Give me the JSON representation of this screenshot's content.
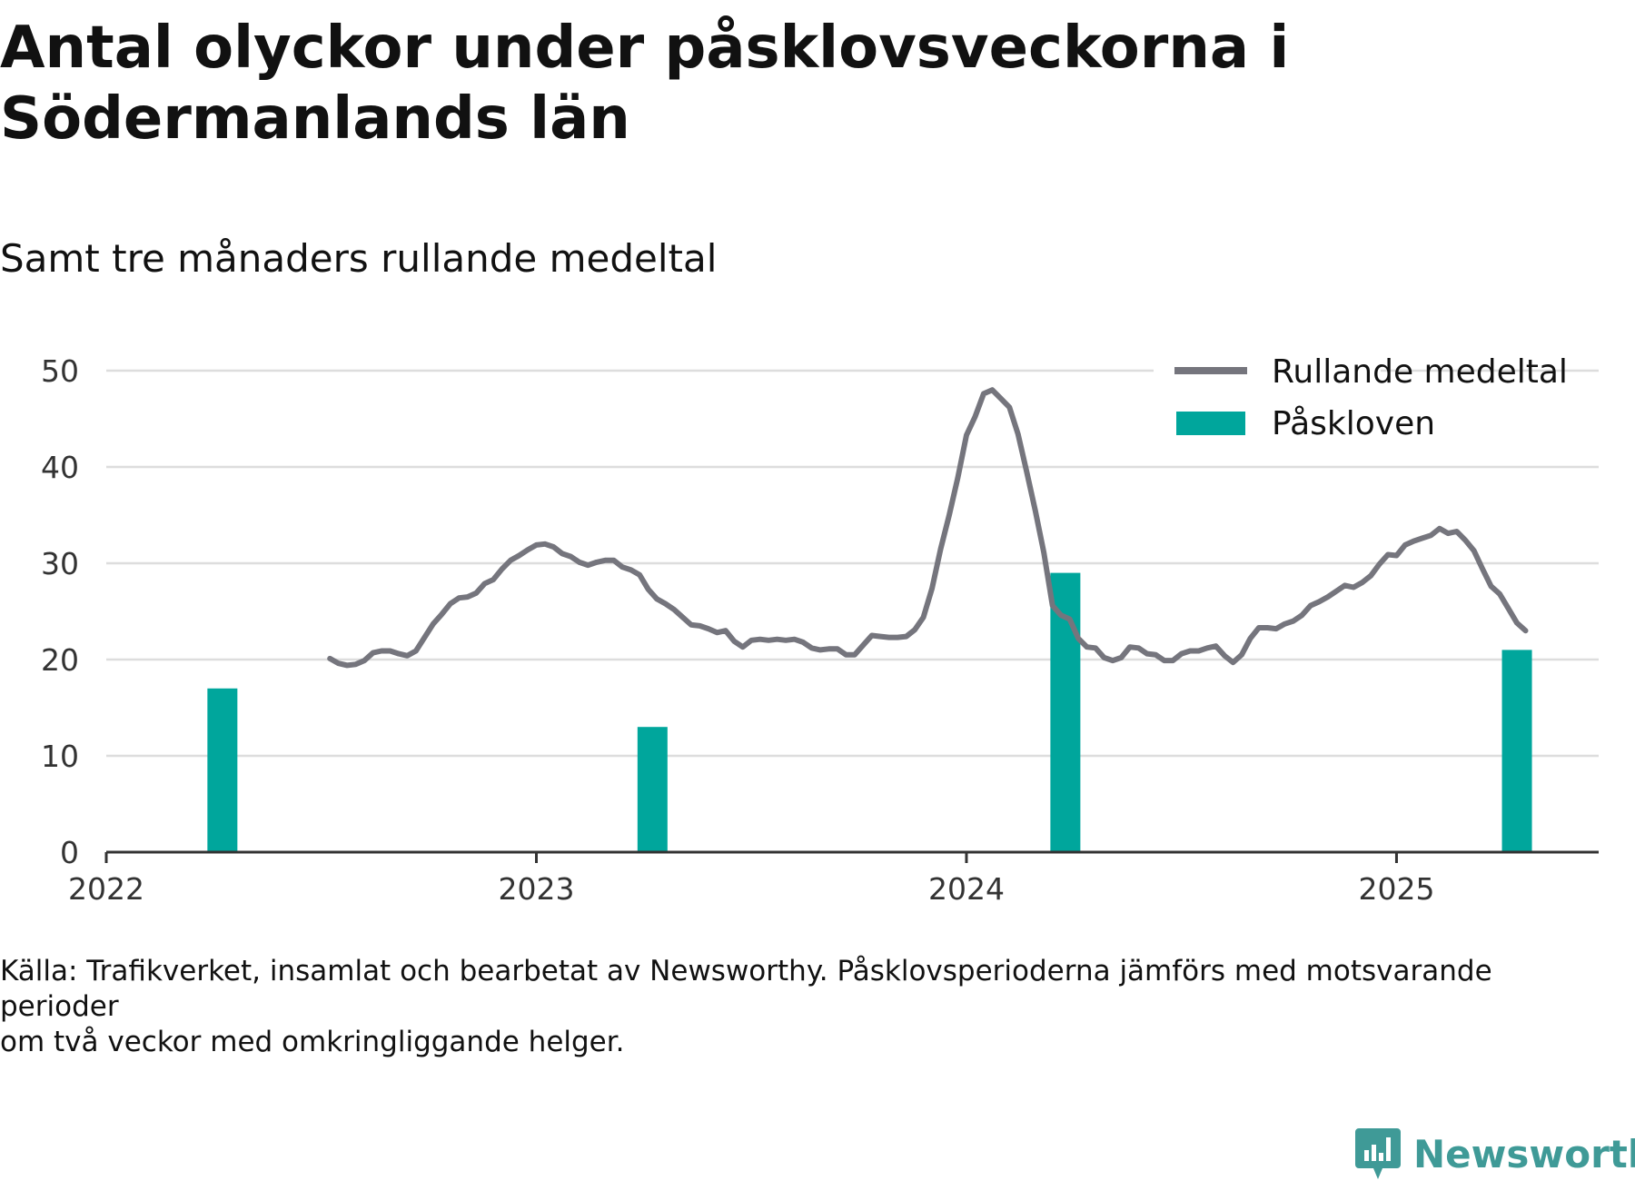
{
  "header": {
    "title": "Antal olyckor under påsklovsveckorna i Södermanlands län",
    "subtitle": "Samt tre månaders rullande medeltal"
  },
  "footer": {
    "source_line1": "Källa: Trafikverket, insamlat och bearbetat av Newsworthy. Påsklovsperioderna jämförs med motsvarande perioder",
    "source_line2": "om två veckor med omkringliggande helger."
  },
  "brand": {
    "name": "Newsworthy",
    "color": "#3f9a97",
    "icon": "newsworthy-logo-icon"
  },
  "colors": {
    "line": "#75757d",
    "bar": "#00a69c",
    "grid": "#dddddd",
    "axis": "#333333"
  },
  "chart_data": {
    "type": "bar+line",
    "ylim": [
      0,
      50
    ],
    "yticks": [
      0,
      10,
      20,
      30,
      40,
      50
    ],
    "xticks": [
      "2022",
      "2023",
      "2024",
      "2025"
    ],
    "xlim": [
      2022.0,
      2025.47
    ],
    "grid": true,
    "legend_position": "top-right",
    "series": [
      {
        "name": "Påskloven",
        "type": "bar",
        "x": [
          2022.27,
          2023.27,
          2024.23,
          2025.28
        ],
        "values": [
          17,
          13,
          29,
          21
        ]
      },
      {
        "name": "Rullande medeltal",
        "type": "line",
        "points": [
          [
            2022.52,
            20.1
          ],
          [
            2022.54,
            19.6
          ],
          [
            2022.56,
            19.4
          ],
          [
            2022.58,
            19.5
          ],
          [
            2022.6,
            19.9
          ],
          [
            2022.62,
            20.7
          ],
          [
            2022.64,
            20.9
          ],
          [
            2022.66,
            20.9
          ],
          [
            2022.68,
            20.6
          ],
          [
            2022.7,
            20.4
          ],
          [
            2022.72,
            20.9
          ],
          [
            2022.74,
            22.3
          ],
          [
            2022.76,
            23.7
          ],
          [
            2022.78,
            24.7
          ],
          [
            2022.8,
            25.8
          ],
          [
            2022.82,
            26.4
          ],
          [
            2022.84,
            26.5
          ],
          [
            2022.86,
            26.9
          ],
          [
            2022.88,
            27.9
          ],
          [
            2022.9,
            28.3
          ],
          [
            2022.92,
            29.4
          ],
          [
            2022.94,
            30.3
          ],
          [
            2022.96,
            30.8
          ],
          [
            2022.98,
            31.4
          ],
          [
            2023.0,
            31.9
          ],
          [
            2023.02,
            32.0
          ],
          [
            2023.04,
            31.7
          ],
          [
            2023.06,
            31.0
          ],
          [
            2023.08,
            30.7
          ],
          [
            2023.1,
            30.1
          ],
          [
            2023.12,
            29.8
          ],
          [
            2023.14,
            30.1
          ],
          [
            2023.16,
            30.3
          ],
          [
            2023.18,
            30.3
          ],
          [
            2023.2,
            29.6
          ],
          [
            2023.22,
            29.3
          ],
          [
            2023.24,
            28.8
          ],
          [
            2023.26,
            27.3
          ],
          [
            2023.28,
            26.3
          ],
          [
            2023.3,
            25.8
          ],
          [
            2023.32,
            25.2
          ],
          [
            2023.34,
            24.4
          ],
          [
            2023.36,
            23.6
          ],
          [
            2023.38,
            23.5
          ],
          [
            2023.4,
            23.2
          ],
          [
            2023.42,
            22.8
          ],
          [
            2023.44,
            23.0
          ],
          [
            2023.46,
            21.9
          ],
          [
            2023.48,
            21.3
          ],
          [
            2023.5,
            22.0
          ],
          [
            2023.52,
            22.1
          ],
          [
            2023.54,
            22.0
          ],
          [
            2023.56,
            22.1
          ],
          [
            2023.58,
            22.0
          ],
          [
            2023.6,
            22.1
          ],
          [
            2023.62,
            21.8
          ],
          [
            2023.64,
            21.2
          ],
          [
            2023.66,
            21.0
          ],
          [
            2023.68,
            21.1
          ],
          [
            2023.7,
            21.1
          ],
          [
            2023.72,
            20.5
          ],
          [
            2023.74,
            20.5
          ],
          [
            2023.76,
            21.5
          ],
          [
            2023.78,
            22.5
          ],
          [
            2023.8,
            22.4
          ],
          [
            2023.82,
            22.3
          ],
          [
            2023.84,
            22.3
          ],
          [
            2023.86,
            22.4
          ],
          [
            2023.88,
            23.1
          ],
          [
            2023.9,
            24.4
          ],
          [
            2023.92,
            27.4
          ],
          [
            2023.94,
            31.5
          ],
          [
            2023.96,
            35.0
          ],
          [
            2023.98,
            38.9
          ],
          [
            2024.0,
            43.3
          ],
          [
            2024.02,
            45.2
          ],
          [
            2024.04,
            47.6
          ],
          [
            2024.06,
            48.0
          ],
          [
            2024.08,
            47.1
          ],
          [
            2024.1,
            46.2
          ],
          [
            2024.12,
            43.4
          ],
          [
            2024.14,
            39.5
          ],
          [
            2024.16,
            35.5
          ],
          [
            2024.18,
            31.1
          ],
          [
            2024.2,
            25.6
          ],
          [
            2024.22,
            24.6
          ],
          [
            2024.24,
            24.2
          ],
          [
            2024.26,
            22.2
          ],
          [
            2024.28,
            21.3
          ],
          [
            2024.3,
            21.2
          ],
          [
            2024.32,
            20.2
          ],
          [
            2024.34,
            19.9
          ],
          [
            2024.36,
            20.2
          ],
          [
            2024.38,
            21.3
          ],
          [
            2024.4,
            21.2
          ],
          [
            2024.42,
            20.6
          ],
          [
            2024.44,
            20.5
          ],
          [
            2024.46,
            19.9
          ],
          [
            2024.48,
            19.9
          ],
          [
            2024.5,
            20.6
          ],
          [
            2024.52,
            20.9
          ],
          [
            2024.54,
            20.9
          ],
          [
            2024.56,
            21.2
          ],
          [
            2024.58,
            21.4
          ],
          [
            2024.6,
            20.4
          ],
          [
            2024.62,
            19.7
          ],
          [
            2024.64,
            20.5
          ],
          [
            2024.66,
            22.2
          ],
          [
            2024.68,
            23.3
          ],
          [
            2024.7,
            23.3
          ],
          [
            2024.72,
            23.2
          ],
          [
            2024.74,
            23.7
          ],
          [
            2024.76,
            24.0
          ],
          [
            2024.78,
            24.6
          ],
          [
            2024.8,
            25.6
          ],
          [
            2024.82,
            26.0
          ],
          [
            2024.84,
            26.5
          ],
          [
            2024.86,
            27.1
          ],
          [
            2024.88,
            27.7
          ],
          [
            2024.9,
            27.5
          ],
          [
            2024.92,
            28.0
          ],
          [
            2024.94,
            28.7
          ],
          [
            2024.96,
            29.9
          ],
          [
            2024.98,
            30.9
          ],
          [
            2025.0,
            30.8
          ],
          [
            2025.02,
            31.9
          ],
          [
            2025.04,
            32.3
          ],
          [
            2025.06,
            32.6
          ],
          [
            2025.08,
            32.9
          ],
          [
            2025.1,
            33.6
          ],
          [
            2025.12,
            33.1
          ],
          [
            2025.14,
            33.3
          ],
          [
            2025.16,
            32.4
          ],
          [
            2025.18,
            31.3
          ],
          [
            2025.2,
            29.4
          ],
          [
            2025.22,
            27.6
          ],
          [
            2025.24,
            26.8
          ],
          [
            2025.26,
            25.3
          ],
          [
            2025.28,
            23.8
          ],
          [
            2025.3,
            23.0
          ]
        ]
      }
    ]
  }
}
